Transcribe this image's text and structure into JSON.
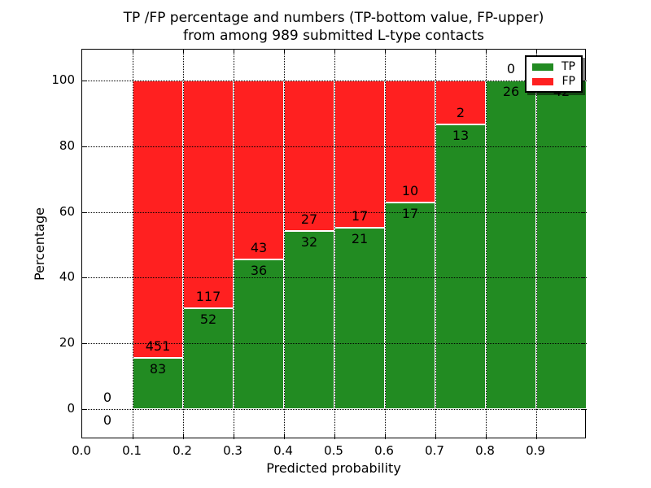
{
  "title": {
    "line1": "TP /FP percentage and numbers (TP-bottom value, FP-upper)",
    "line2": "from among 989 submitted L-type contacts"
  },
  "colors": {
    "tp": "#228B22",
    "fp": "#FF2020",
    "text": "#000000",
    "background": "#ffffff"
  },
  "legend": {
    "items": [
      {
        "label": "TP",
        "color_key": "tp"
      },
      {
        "label": "FP",
        "color_key": "fp"
      }
    ],
    "position": "upper right"
  },
  "chart_data": {
    "type": "bar",
    "stacked": true,
    "normalized": "each bar scaled to 100%, counts shown as labels",
    "title": "TP /FP percentage and numbers (TP-bottom value, FP-upper) from among 989 submitted L-type contacts",
    "xlabel": "Predicted probability",
    "ylabel": "Percentage",
    "xlim": [
      0.0,
      1.0
    ],
    "ylim": [
      -10,
      110
    ],
    "x_tick_labels": [
      "0.0",
      "0.1",
      "0.2",
      "0.3",
      "0.4",
      "0.5",
      "0.6",
      "0.7",
      "0.8",
      "0.9"
    ],
    "y_ticks": [
      0,
      20,
      40,
      60,
      80,
      100
    ],
    "bin_width": 0.1,
    "bin_starts": [
      0.0,
      0.1,
      0.2,
      0.3,
      0.4,
      0.5,
      0.6,
      0.7,
      0.8,
      0.9
    ],
    "series": [
      {
        "name": "TP",
        "values": [
          0,
          83,
          52,
          36,
          32,
          21,
          17,
          13,
          26,
          42
        ]
      },
      {
        "name": "FP",
        "values": [
          0,
          451,
          117,
          43,
          27,
          17,
          10,
          2,
          0,
          0
        ]
      }
    ],
    "tp_percent": [
      0,
      15.5,
      30.8,
      45.6,
      54.2,
      55.3,
      63.0,
      86.7,
      100,
      100
    ],
    "total_contacts": 989,
    "grid": "dotted, drawn over bars",
    "legend_position": "upper right",
    "note": "FP label of last bin (0) is hidden behind the legend box"
  }
}
